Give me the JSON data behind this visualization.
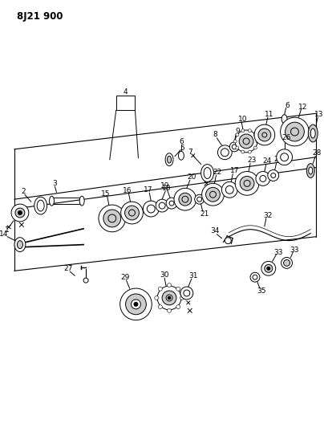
{
  "title": "8J21 900",
  "bg_color": "#ffffff",
  "fg_color": "#000000",
  "fig_width": 4.04,
  "fig_height": 5.33,
  "dpi": 100,
  "gray_fill": "#aaaaaa",
  "light_gray": "#cccccc",
  "white": "#ffffff"
}
